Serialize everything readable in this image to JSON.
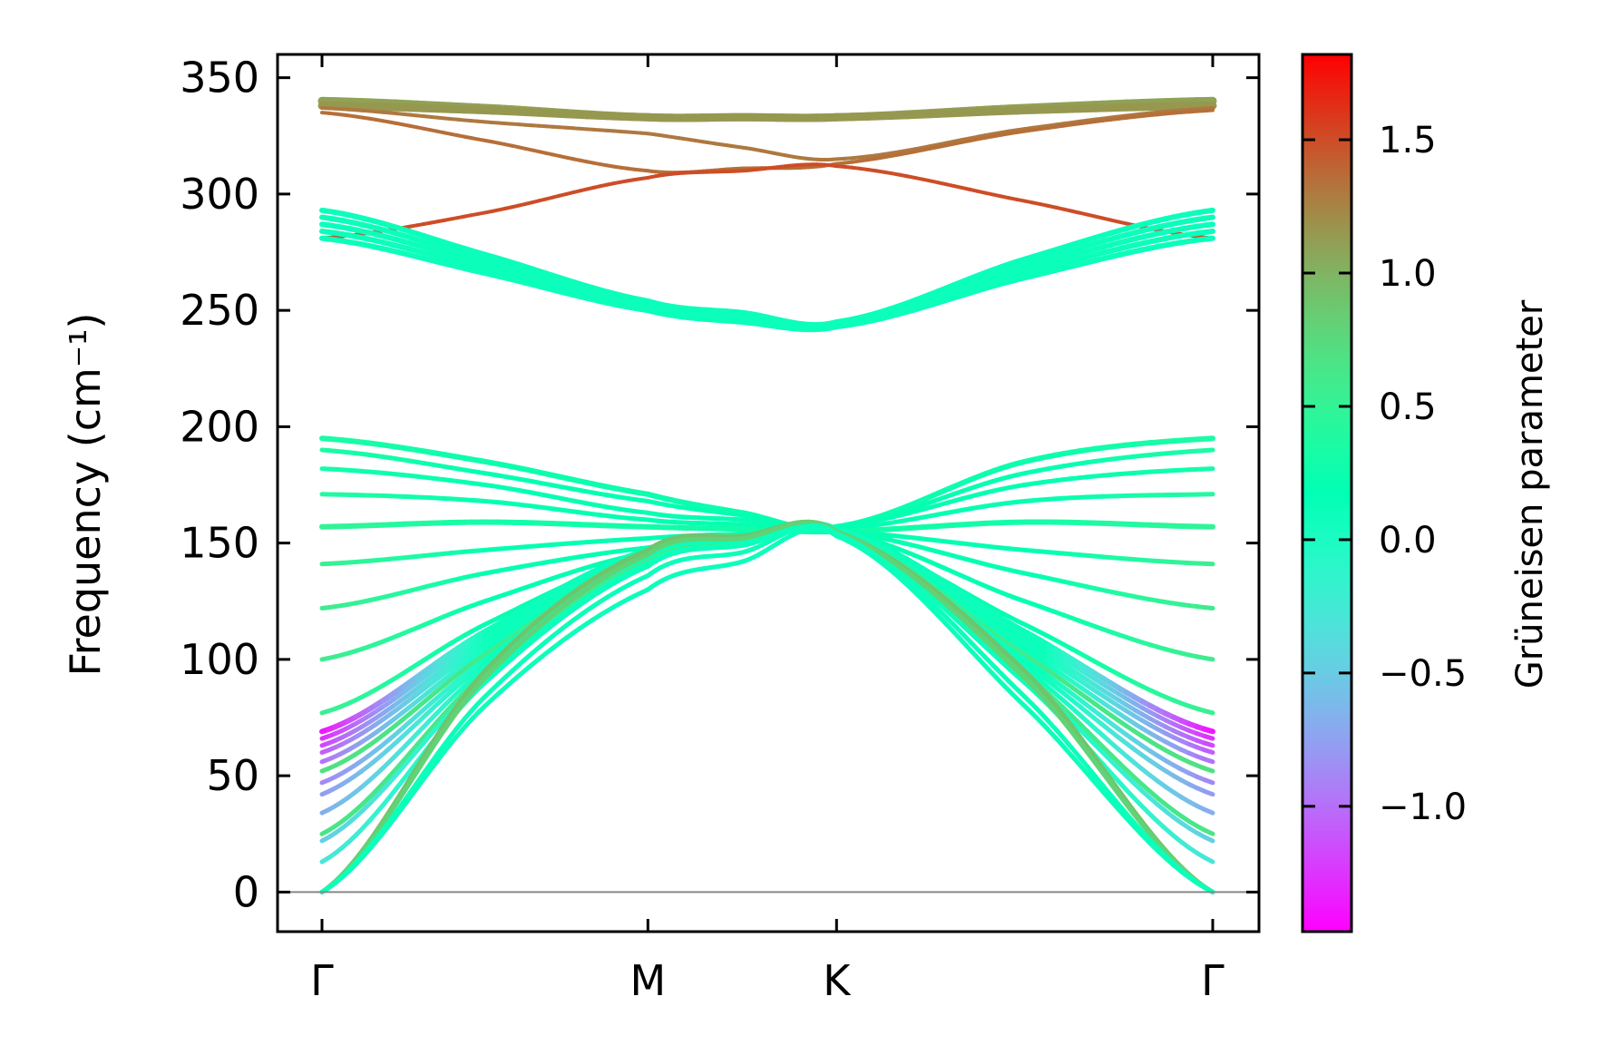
{
  "chart_data": {
    "type": "line",
    "title": "",
    "xlabel": "",
    "ylabel": "Frequency (cm⁻¹)",
    "ylim": [
      -17,
      360
    ],
    "xlim": [
      0,
      1.577
    ],
    "yticks": [
      0,
      50,
      100,
      150,
      200,
      250,
      300,
      350
    ],
    "ytick_labels": [
      "0",
      "50",
      "100",
      "150",
      "200",
      "250",
      "300",
      "350"
    ],
    "xticks": [
      0,
      0.577,
      0.911,
      1.577
    ],
    "xtick_labels": [
      "Γ",
      "M",
      "K",
      "Γ"
    ],
    "sample_x": [
      0,
      0.2885,
      0.577,
      0.744,
      0.911,
      1.244,
      1.577
    ],
    "colorbar": {
      "label": "Grüneisen parameter",
      "range": [
        -1.47,
        1.82
      ],
      "ticks": [
        -1.0,
        -0.5,
        0.0,
        0.5,
        1.0,
        1.5
      ],
      "tick_labels": [
        "−1.0",
        "−0.5",
        "0.0",
        "0.5",
        "1.0",
        "1.5"
      ],
      "colormap": "rainbow"
    },
    "bands": [
      {
        "f": [
          340,
          337,
          333,
          333,
          333,
          337,
          340
        ],
        "g": [
          1.1,
          1.1
        ],
        "w": 9
      },
      {
        "f": [
          338,
          336,
          333,
          333,
          333,
          336,
          338
        ],
        "g": [
          1.15,
          1.15
        ],
        "w": 9
      },
      {
        "f": [
          337,
          331,
          326,
          320,
          315,
          328,
          337
        ],
        "g": [
          1.3,
          1.3
        ],
        "w": 4
      },
      {
        "f": [
          335,
          323,
          310,
          311,
          313,
          327,
          336
        ],
        "g": [
          1.35,
          1.35
        ],
        "w": 4
      },
      {
        "f": [
          281,
          292,
          307,
          310,
          312,
          297,
          281
        ],
        "g": [
          1.5,
          1.5
        ],
        "w": 4
      },
      {
        "f": [
          281,
          266,
          250,
          245,
          243,
          264,
          281
        ],
        "g": [
          0.1,
          0.1
        ],
        "w": 6
      },
      {
        "f": [
          284,
          268,
          251,
          246,
          243.5,
          266,
          284
        ],
        "g": [
          0.1,
          0.1
        ],
        "w": 6
      },
      {
        "f": [
          287,
          270,
          252,
          247,
          244,
          268,
          287
        ],
        "g": [
          0.1,
          0.1
        ],
        "w": 6
      },
      {
        "f": [
          290,
          272,
          253,
          248,
          244.5,
          270,
          290
        ],
        "g": [
          0.1,
          0.1
        ],
        "w": 6
      },
      {
        "f": [
          293,
          274,
          254,
          249,
          245,
          272,
          293
        ],
        "g": [
          0.1,
          0.1
        ],
        "w": 6
      },
      {
        "f": [
          195,
          185,
          171,
          163,
          157,
          185,
          195
        ],
        "g": [
          0.35,
          0.25
        ],
        "w": 6
      },
      {
        "f": [
          190,
          180,
          168,
          162,
          157,
          180,
          190
        ],
        "g": [
          0.35,
          0.2
        ],
        "w": 5
      },
      {
        "f": [
          182,
          175,
          163,
          160,
          157,
          175,
          182
        ],
        "g": [
          0.3,
          0.2
        ],
        "w": 5
      },
      {
        "f": [
          171,
          168,
          160,
          158,
          156,
          168,
          171
        ],
        "g": [
          0.4,
          0.2
        ],
        "w": 5
      },
      {
        "f": [
          157,
          159,
          157,
          156,
          155,
          159,
          157
        ],
        "g": [
          0.5,
          0.3
        ],
        "w": 6
      },
      {
        "f": [
          141,
          147,
          152,
          154,
          155,
          147,
          141
        ],
        "g": [
          0.55,
          0.2
        ],
        "w": 5
      },
      {
        "f": [
          122,
          137,
          148,
          152,
          155,
          137,
          122
        ],
        "g": [
          0.6,
          0.2
        ],
        "w": 5
      },
      {
        "f": [
          100,
          125,
          146,
          151,
          155,
          125,
          100
        ],
        "g": [
          0.6,
          0.2
        ],
        "w": 5
      },
      {
        "f": [
          77,
          115,
          145,
          151,
          154,
          115,
          77
        ],
        "g": [
          0.55,
          0.2
        ],
        "w": 5
      },
      {
        "f": [
          69,
          112,
          147,
          152,
          156,
          112,
          69
        ],
        "g": [
          -1.4,
          0.1
        ],
        "w": 6
      },
      {
        "f": [
          66,
          110,
          146,
          152,
          156,
          110,
          66
        ],
        "g": [
          -1.3,
          0.1
        ],
        "w": 5
      },
      {
        "f": [
          63,
          108,
          146,
          151,
          156,
          108,
          63
        ],
        "g": [
          -1.2,
          0.1
        ],
        "w": 5
      },
      {
        "f": [
          60,
          106,
          145,
          151,
          155,
          106,
          60
        ],
        "g": [
          -1.1,
          0.1
        ],
        "w": 5
      },
      {
        "f": [
          56,
          104,
          145,
          151,
          155,
          104,
          56
        ],
        "g": [
          -1.0,
          0.1
        ],
        "w": 5
      },
      {
        "f": [
          52,
          102,
          144,
          150,
          155,
          102,
          52
        ],
        "g": [
          0.7,
          0.6
        ],
        "w": 5
      },
      {
        "f": [
          47,
          100,
          144,
          150,
          155,
          100,
          47
        ],
        "g": [
          -0.9,
          0.1
        ],
        "w": 5
      },
      {
        "f": [
          42,
          98,
          143,
          150,
          155,
          98,
          42
        ],
        "g": [
          -0.8,
          0.1
        ],
        "w": 5
      },
      {
        "f": [
          34,
          96,
          143,
          150,
          155,
          96,
          34
        ],
        "g": [
          -0.7,
          0.1
        ],
        "w": 5
      },
      {
        "f": [
          25,
          94,
          142,
          149,
          154,
          94,
          25
        ],
        "g": [
          0.65,
          0.6
        ],
        "w": 5
      },
      {
        "f": [
          22,
          92,
          141,
          149,
          154,
          92,
          22
        ],
        "g": [
          -0.5,
          0.1
        ],
        "w": 5
      },
      {
        "f": [
          13,
          90,
          140,
          149,
          154,
          90,
          13
        ],
        "g": [
          -0.3,
          0.1
        ],
        "w": 5
      },
      {
        "f": [
          0,
          95,
          147,
          153,
          155,
          95,
          0
        ],
        "g": [
          0.9,
          0.9
        ],
        "w": 5
      },
      {
        "f": [
          0,
          92,
          145,
          152,
          155,
          92,
          0
        ],
        "g": [
          0.8,
          0.8
        ],
        "w": 5
      },
      {
        "f": [
          0,
          84,
          136,
          146,
          154,
          84,
          0
        ],
        "g": [
          0.1,
          0.1
        ],
        "w": 5
      },
      {
        "f": [
          0,
          80,
          130,
          142,
          153,
          80,
          0
        ],
        "g": [
          0.1,
          0.1
        ],
        "w": 5
      }
    ]
  }
}
